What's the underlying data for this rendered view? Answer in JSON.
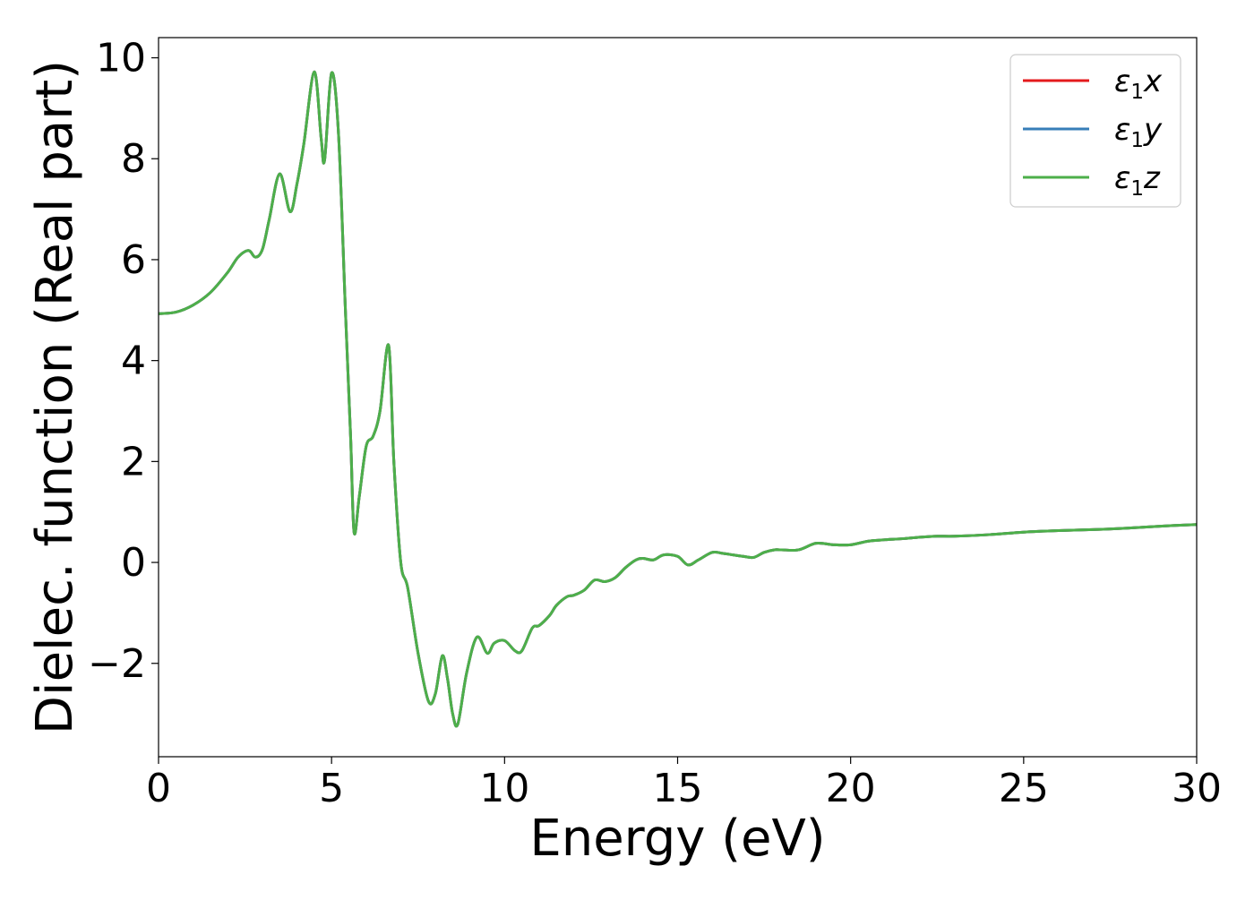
{
  "chart_data": {
    "type": "line",
    "title": "",
    "xlabel": "Energy (eV)",
    "ylabel": "Dielec. function (Real part)",
    "xlim": [
      0,
      30
    ],
    "ylim": [
      -3.85,
      10.4
    ],
    "x_ticks": [
      0,
      5,
      10,
      15,
      20,
      25,
      30
    ],
    "x_tick_labels": [
      "0",
      "5",
      "10",
      "15",
      "20",
      "25",
      "30"
    ],
    "y_ticks": [
      -2,
      0,
      2,
      4,
      6,
      8,
      10
    ],
    "y_tick_labels": [
      "−2",
      "0",
      "2",
      "4",
      "6",
      "8",
      "10"
    ],
    "grid": false,
    "legend_position": "top-right",
    "x": [
      0,
      0.5,
      1.0,
      1.5,
      2.0,
      2.3,
      2.6,
      2.8,
      3.0,
      3.2,
      3.5,
      3.8,
      4.0,
      4.2,
      4.5,
      4.7,
      4.8,
      5.0,
      5.2,
      5.4,
      5.55,
      5.65,
      5.8,
      6.0,
      6.2,
      6.4,
      6.65,
      6.8,
      7.0,
      7.2,
      7.5,
      7.8,
      8.0,
      8.2,
      8.35,
      8.5,
      8.65,
      8.9,
      9.2,
      9.5,
      9.7,
      10.0,
      10.3,
      10.5,
      10.8,
      11.0,
      11.3,
      11.5,
      11.8,
      12.0,
      12.3,
      12.6,
      12.9,
      13.2,
      13.5,
      13.8,
      14.0,
      14.3,
      14.6,
      15.0,
      15.3,
      15.6,
      16.0,
      16.3,
      16.6,
      16.9,
      17.2,
      17.5,
      17.8,
      18.0,
      18.5,
      19.0,
      19.5,
      20.0,
      20.5,
      21.0,
      21.5,
      22.0,
      22.5,
      23.0,
      24.0,
      25.0,
      26.0,
      27.0,
      28.0,
      29.0,
      30.0
    ],
    "series": [
      {
        "name": "ε₁x",
        "color": "#e41a1c",
        "values": [
          4.93,
          4.96,
          5.1,
          5.35,
          5.75,
          6.05,
          6.18,
          6.05,
          6.2,
          6.8,
          7.7,
          6.95,
          7.5,
          8.3,
          9.72,
          8.4,
          7.98,
          9.7,
          8.5,
          5.0,
          2.5,
          0.6,
          1.3,
          2.3,
          2.5,
          3.0,
          4.3,
          2.0,
          0.0,
          -0.5,
          -1.8,
          -2.75,
          -2.6,
          -1.85,
          -2.3,
          -3.0,
          -3.2,
          -2.2,
          -1.48,
          -1.8,
          -1.6,
          -1.55,
          -1.75,
          -1.75,
          -1.3,
          -1.25,
          -1.05,
          -0.85,
          -0.68,
          -0.65,
          -0.55,
          -0.35,
          -0.38,
          -0.3,
          -0.1,
          0.05,
          0.08,
          0.05,
          0.15,
          0.12,
          -0.05,
          0.05,
          0.2,
          0.18,
          0.15,
          0.12,
          0.1,
          0.2,
          0.25,
          0.25,
          0.25,
          0.38,
          0.35,
          0.35,
          0.42,
          0.45,
          0.47,
          0.5,
          0.52,
          0.52,
          0.55,
          0.6,
          0.63,
          0.65,
          0.68,
          0.72,
          0.75
        ]
      },
      {
        "name": "ε₁y",
        "color": "#377eb8",
        "values": [
          4.93,
          4.96,
          5.1,
          5.35,
          5.75,
          6.05,
          6.18,
          6.05,
          6.2,
          6.8,
          7.7,
          6.95,
          7.5,
          8.3,
          9.72,
          8.4,
          7.98,
          9.7,
          8.5,
          5.0,
          2.5,
          0.6,
          1.3,
          2.3,
          2.5,
          3.0,
          4.3,
          2.0,
          0.0,
          -0.5,
          -1.8,
          -2.75,
          -2.6,
          -1.85,
          -2.3,
          -3.0,
          -3.2,
          -2.2,
          -1.48,
          -1.8,
          -1.6,
          -1.55,
          -1.75,
          -1.75,
          -1.3,
          -1.25,
          -1.05,
          -0.85,
          -0.68,
          -0.65,
          -0.55,
          -0.35,
          -0.38,
          -0.3,
          -0.1,
          0.05,
          0.08,
          0.05,
          0.15,
          0.12,
          -0.05,
          0.05,
          0.2,
          0.18,
          0.15,
          0.12,
          0.1,
          0.2,
          0.25,
          0.25,
          0.25,
          0.38,
          0.35,
          0.35,
          0.42,
          0.45,
          0.47,
          0.5,
          0.52,
          0.52,
          0.55,
          0.6,
          0.63,
          0.65,
          0.68,
          0.72,
          0.75
        ]
      },
      {
        "name": "ε₁z",
        "color": "#4daf4a",
        "values": [
          4.93,
          4.96,
          5.1,
          5.35,
          5.75,
          6.05,
          6.18,
          6.05,
          6.2,
          6.8,
          7.7,
          6.95,
          7.5,
          8.3,
          9.72,
          8.4,
          7.98,
          9.7,
          8.5,
          5.0,
          2.5,
          0.6,
          1.3,
          2.3,
          2.5,
          3.0,
          4.3,
          2.0,
          0.0,
          -0.5,
          -1.8,
          -2.75,
          -2.6,
          -1.85,
          -2.3,
          -3.0,
          -3.2,
          -2.2,
          -1.48,
          -1.8,
          -1.6,
          -1.55,
          -1.75,
          -1.75,
          -1.3,
          -1.25,
          -1.05,
          -0.85,
          -0.68,
          -0.65,
          -0.55,
          -0.35,
          -0.38,
          -0.3,
          -0.1,
          0.05,
          0.08,
          0.05,
          0.15,
          0.12,
          -0.05,
          0.05,
          0.2,
          0.18,
          0.15,
          0.12,
          0.1,
          0.2,
          0.25,
          0.25,
          0.25,
          0.38,
          0.35,
          0.35,
          0.42,
          0.45,
          0.47,
          0.5,
          0.52,
          0.52,
          0.55,
          0.6,
          0.63,
          0.65,
          0.68,
          0.72,
          0.75
        ]
      }
    ],
    "legend": [
      {
        "base": "ε",
        "sub": "1",
        "comp": "x"
      },
      {
        "base": "ε",
        "sub": "1",
        "comp": "y"
      },
      {
        "base": "ε",
        "sub": "1",
        "comp": "z"
      }
    ]
  }
}
